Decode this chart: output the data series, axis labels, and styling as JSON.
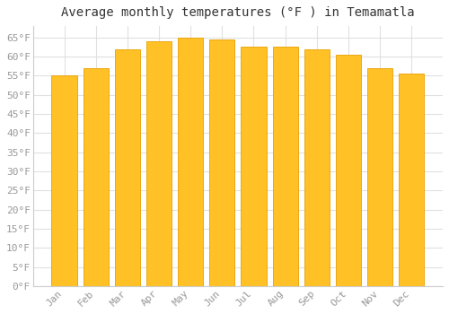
{
  "title": "Average monthly temperatures (°F ) in Temamatla",
  "months": [
    "Jan",
    "Feb",
    "Mar",
    "Apr",
    "May",
    "Jun",
    "Jul",
    "Aug",
    "Sep",
    "Oct",
    "Nov",
    "Dec"
  ],
  "values": [
    55,
    57,
    62,
    64,
    65,
    64.5,
    62.5,
    62.5,
    62,
    60.5,
    57,
    55.5
  ],
  "bar_color": "#FFC125",
  "bar_edge_color": "#E8A000",
  "ylim": [
    0,
    68
  ],
  "yticks": [
    0,
    5,
    10,
    15,
    20,
    25,
    30,
    35,
    40,
    45,
    50,
    55,
    60,
    65
  ],
  "ytick_labels": [
    "0°F",
    "5°F",
    "10°F",
    "15°F",
    "20°F",
    "25°F",
    "30°F",
    "35°F",
    "40°F",
    "45°F",
    "50°F",
    "55°F",
    "60°F",
    "65°F"
  ],
  "grid_color": "#e0e0e0",
  "bg_color": "#ffffff",
  "plot_bg_color": "#ffffff",
  "title_fontsize": 10,
  "tick_fontsize": 8,
  "tick_color": "#999999",
  "font_family": "monospace"
}
